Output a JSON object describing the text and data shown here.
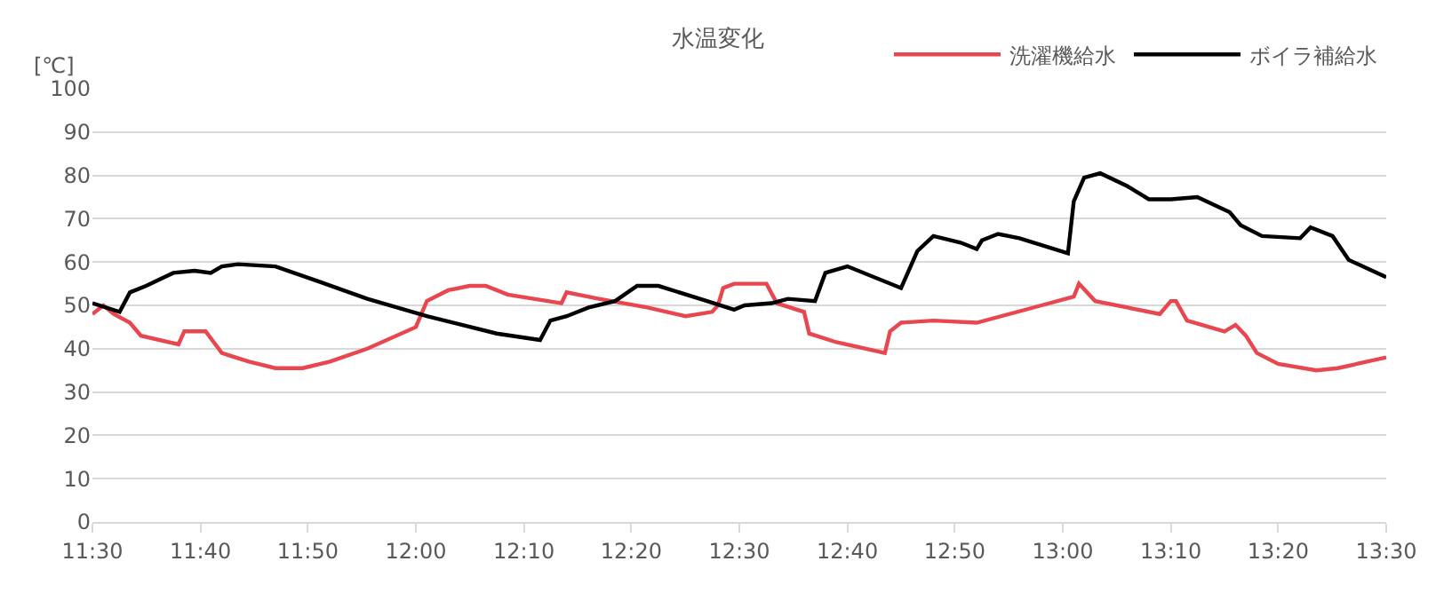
{
  "chart_data": {
    "type": "line",
    "title": "水温変化",
    "ylabel": "[℃]",
    "legend": "top right",
    "grid": "y",
    "marker": "none",
    "line_style": "solid",
    "xlim": [
      11.5,
      13.5
    ],
    "xticks": [
      {
        "value": 11.5,
        "label": "11:30"
      },
      {
        "value": 11.667,
        "label": "11:40"
      },
      {
        "value": 11.833,
        "label": "11:50"
      },
      {
        "value": 12,
        "label": "12:00"
      },
      {
        "value": 12.167,
        "label": "12:10"
      },
      {
        "value": 12.333,
        "label": "12:20"
      },
      {
        "value": 12.5,
        "label": "12:30"
      },
      {
        "value": 12.667,
        "label": "12:40"
      },
      {
        "value": 12.833,
        "label": "12:50"
      },
      {
        "value": 13,
        "label": "13:00"
      },
      {
        "value": 13.167,
        "label": "13:10"
      },
      {
        "value": 13.333,
        "label": "13:20"
      },
      {
        "value": 13.5,
        "label": "13:30"
      }
    ],
    "ylim": [
      0,
      100
    ],
    "yticks": [
      0,
      10,
      20,
      30,
      40,
      50,
      60,
      70,
      80,
      90,
      100
    ],
    "series": [
      {
        "name": "洗濯機給水",
        "color": "#e8474f",
        "x": [
          11.5,
          11.517,
          11.533,
          11.558,
          11.575,
          11.633,
          11.642,
          11.675,
          11.7,
          11.742,
          11.783,
          11.825,
          11.867,
          11.925,
          12,
          12.017,
          12.05,
          12.083,
          12.108,
          12.142,
          12.225,
          12.233,
          12.283,
          12.358,
          12.417,
          12.458,
          12.467,
          12.475,
          12.492,
          12.542,
          12.558,
          12.6,
          12.608,
          12.65,
          12.725,
          12.733,
          12.75,
          12.8,
          12.867,
          12.967,
          13.017,
          13.025,
          13.05,
          13.15,
          13.167,
          13.175,
          13.192,
          13.25,
          13.267,
          13.283,
          13.3,
          13.333,
          13.392,
          13.425,
          13.5
        ],
        "values": [
          48,
          50,
          48,
          46,
          43,
          41,
          44,
          44,
          39,
          37,
          35.5,
          35.5,
          37,
          40,
          45,
          51,
          53.5,
          54.5,
          54.5,
          52.5,
          50.5,
          53,
          51.5,
          49.5,
          47.5,
          48.5,
          50,
          54,
          55,
          55,
          50.5,
          48.5,
          43.5,
          41.5,
          39,
          44,
          46,
          46.5,
          46,
          50,
          52,
          55,
          51,
          48,
          51,
          51,
          46.5,
          44,
          45.5,
          43,
          39,
          36.5,
          35,
          35.5,
          38
        ]
      },
      {
        "name": "ボイラ補給水",
        "color": "#000000",
        "x": [
          11.5,
          11.542,
          11.558,
          11.583,
          11.625,
          11.658,
          11.683,
          11.7,
          11.725,
          11.783,
          11.85,
          11.925,
          12.017,
          12.125,
          12.192,
          12.208,
          12.233,
          12.267,
          12.308,
          12.342,
          12.375,
          12.45,
          12.492,
          12.508,
          12.55,
          12.575,
          12.617,
          12.633,
          12.667,
          12.75,
          12.775,
          12.8,
          12.842,
          12.867,
          12.875,
          12.9,
          12.933,
          13.008,
          13.017,
          13.033,
          13.058,
          13.1,
          13.133,
          13.167,
          13.208,
          13.258,
          13.275,
          13.308,
          13.367,
          13.383,
          13.417,
          13.442,
          13.5
        ],
        "values": [
          50.5,
          48.5,
          53,
          54.5,
          57.5,
          58,
          57.5,
          59,
          59.5,
          59,
          55.5,
          51.5,
          47.5,
          43.5,
          42,
          46.5,
          47.5,
          49.5,
          51,
          54.5,
          54.5,
          51,
          49,
          50,
          50.5,
          51.5,
          51,
          57.5,
          59,
          54,
          62.5,
          66,
          64.5,
          63,
          65,
          66.5,
          65.5,
          62,
          74,
          79.5,
          80.5,
          77.5,
          74.5,
          74.5,
          75,
          71.5,
          68.5,
          66,
          65.5,
          68,
          66,
          60.5,
          56.5
        ]
      }
    ]
  }
}
